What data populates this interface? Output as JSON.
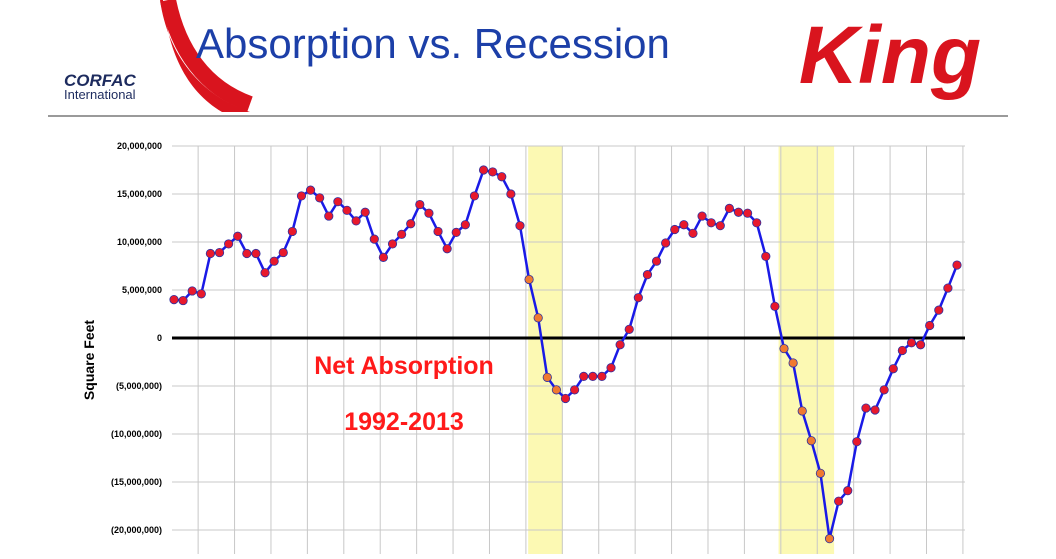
{
  "header": {
    "title": "Absorption vs. Recession",
    "logo_text": "CORFAC",
    "logo_subtext": "International",
    "brand": "King"
  },
  "chart_data": {
    "type": "line",
    "y_label": "Square Feet",
    "annotations": [
      "Net Absorption",
      "1992-2013"
    ],
    "categories": [
      null,
      null,
      null,
      null,
      null,
      null,
      null,
      null,
      null,
      null,
      null,
      null,
      null,
      null,
      null,
      null,
      null,
      null,
      null,
      null,
      null,
      null,
      null,
      null,
      null,
      null,
      null,
      null,
      null,
      null,
      null,
      null,
      null,
      null,
      null,
      null,
      null,
      null,
      null,
      null,
      null,
      null,
      null,
      null,
      null,
      null,
      null,
      null,
      null,
      null,
      null,
      null,
      null,
      null,
      null,
      null,
      null,
      null,
      null,
      null,
      null,
      null,
      null,
      null,
      null,
      null,
      null,
      null,
      null,
      null,
      null,
      null,
      null,
      null,
      null,
      null,
      null,
      null,
      null,
      null,
      null,
      null,
      null,
      null,
      null,
      null,
      null
    ],
    "series": [
      {
        "color": "#1a1ae6",
        "marker_color": "#e8192c",
        "highlight_marker_color": "#f07a30",
        "values": [
          4000000,
          3900000,
          4900000,
          4600000,
          8800000,
          8900000,
          9800000,
          10600000,
          8800000,
          8800000,
          6800000,
          8000000,
          8900000,
          11100000,
          14800000,
          15400000,
          14600000,
          12700000,
          14200000,
          13300000,
          12200000,
          13100000,
          10300000,
          8400000,
          9800000,
          10800000,
          11900000,
          13900000,
          13000000,
          11100000,
          9300000,
          11000000,
          11800000,
          14800000,
          17500000,
          17300000,
          16800000,
          15000000,
          11700000,
          6100000,
          2100000,
          -4100000,
          -5400000,
          -6300000,
          -5400000,
          -4000000,
          -4000000,
          -4000000,
          -3100000,
          -700000,
          900000,
          4200000,
          6600000,
          8000000,
          9900000,
          11300000,
          11800000,
          10900000,
          12700000,
          12000000,
          11700000,
          13500000,
          13100000,
          13000000,
          12000000,
          8500000,
          3300000,
          -1100000,
          -2600000,
          -7600000,
          -10700000,
          -14100000,
          -20900000,
          -17000000,
          -15900000,
          -10800000,
          -7300000,
          -7500000,
          -5400000,
          -3200000,
          -1300000,
          -500000,
          -700000,
          1300000,
          2900000,
          5200000,
          7600000
        ]
      }
    ],
    "shaded_bands": {
      "color": "#fbf7a0",
      "ranges": [
        [
          38.9,
          42.7
        ],
        [
          66.4,
          72.5
        ]
      ]
    },
    "ylim": [
      -22000000,
      20000000
    ],
    "yticks": [
      {
        "value": 20000000,
        "label": "20,000,000"
      },
      {
        "value": 15000000,
        "label": "15,000,000"
      },
      {
        "value": 10000000,
        "label": "10,000,000"
      },
      {
        "value": 5000000,
        "label": "5,000,000"
      },
      0,
      {
        "value": -5000000,
        "label": "(5,000,000)"
      },
      {
        "value": -10000000,
        "label": "(10,000,000)"
      },
      {
        "value": -15000000,
        "label": "(15,000,000)"
      },
      {
        "value": -20000000,
        "label": "(20,000,000)"
      }
    ],
    "grid": true
  }
}
